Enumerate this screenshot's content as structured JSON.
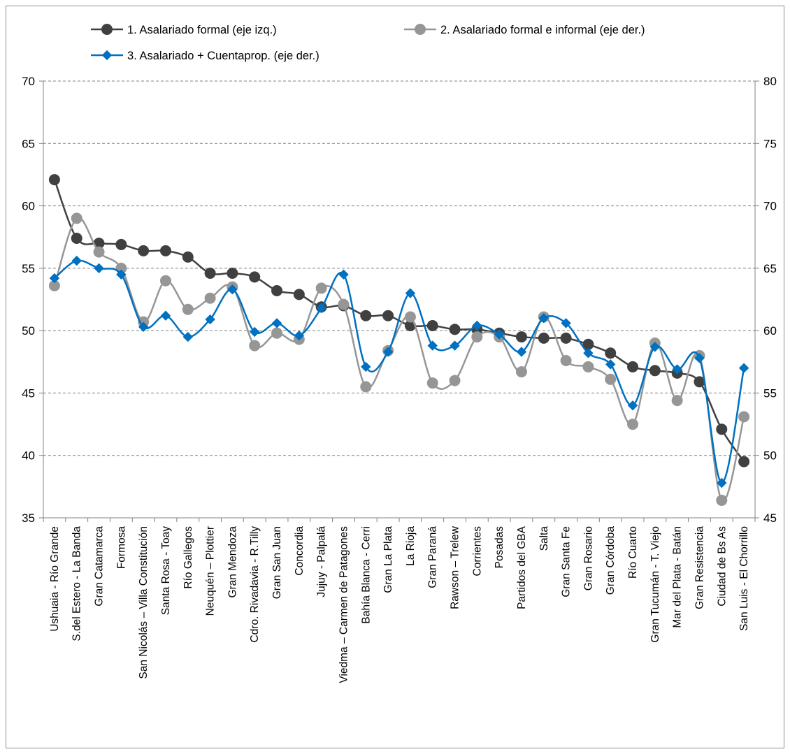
{
  "chart_data": {
    "type": "line",
    "categories": [
      "Ushuaia - Río Grande",
      "S.del Estero - La Banda",
      "Gran Catamarca",
      "Formosa",
      "San Nicolás – Villa Constitución",
      "Santa Rosa - Toay",
      "Río Gallegos",
      "Neuquén – Plottier",
      "Gran Mendoza",
      "Cdro. Rivadavia - R.Tilly",
      "Gran San Juan",
      "Concordia",
      "Jujuy - Palpalá",
      "Viedma – Carmen de Patagones",
      "Bahía Blanca - Cerri",
      "Gran La Plata",
      "La Rioja",
      "Gran Paraná",
      "Rawson – Trelew",
      "Corrientes",
      "Posadas",
      "Partidos del GBA",
      "Salta",
      "Gran Santa Fe",
      "Gran Rosario",
      "Gran Córdoba",
      "Río Cuarto",
      "Gran Tucumán - T. Viejo",
      "Mar del Plata - Batán",
      "Gran Resistencia",
      "Ciudad de Bs As",
      "San Luis - El Chorrillo"
    ],
    "y_left": {
      "min": 35,
      "max": 70,
      "ticks": [
        35,
        40,
        45,
        50,
        55,
        60,
        65,
        70
      ]
    },
    "y_right": {
      "min": 45,
      "max": 80,
      "ticks": [
        45,
        50,
        55,
        60,
        65,
        70,
        75,
        80
      ]
    },
    "grid": "horizontal dashed",
    "legend_position": "top",
    "series": [
      {
        "name": "1. Asalariado formal (eje izq.)",
        "axis": "left",
        "color": "#404040",
        "marker": "circle",
        "values": [
          62.1,
          57.4,
          57.0,
          56.9,
          56.4,
          56.4,
          55.9,
          54.6,
          54.6,
          54.3,
          53.2,
          52.9,
          51.9,
          52.0,
          51.2,
          51.2,
          50.4,
          50.4,
          50.1,
          50.1,
          49.8,
          49.5,
          49.4,
          49.4,
          48.9,
          48.2,
          47.1,
          46.8,
          46.6,
          45.9,
          42.1,
          39.5
        ]
      },
      {
        "name": "2. Asalariado formal e informal (eje der.)",
        "axis": "right",
        "color": "#969696",
        "marker": "circle",
        "values": [
          63.6,
          69.0,
          66.3,
          65.0,
          60.7,
          64.0,
          61.7,
          62.6,
          63.5,
          58.8,
          59.8,
          59.3,
          63.4,
          62.1,
          55.5,
          58.4,
          61.1,
          55.8,
          56.0,
          59.5,
          59.5,
          56.7,
          61.1,
          57.6,
          57.1,
          56.1,
          52.5,
          59.0,
          54.4,
          58.0,
          46.4,
          53.1
        ]
      },
      {
        "name": "3. Asalariado + Cuentaprop. (eje der.)",
        "axis": "right",
        "color": "#0070C0",
        "marker": "diamond",
        "values": [
          64.2,
          65.6,
          65.0,
          64.5,
          60.3,
          61.2,
          59.5,
          60.9,
          63.3,
          59.9,
          60.6,
          59.6,
          61.8,
          64.5,
          57.1,
          58.3,
          63.0,
          58.8,
          58.8,
          60.4,
          59.7,
          58.3,
          61.0,
          60.6,
          58.2,
          57.3,
          54.0,
          58.7,
          56.9,
          57.8,
          47.8,
          57.0
        ]
      }
    ]
  }
}
